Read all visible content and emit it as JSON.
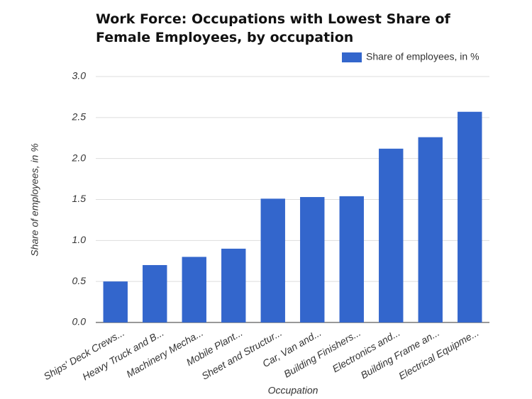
{
  "chart_data": {
    "type": "bar",
    "title": "Work Force: Occupations with Lowest Share of Female Employees, by occupation",
    "x_label": "Occupation",
    "y_label": "Share of employees, in %",
    "categories": [
      "Ships' Deck Crews...",
      "Heavy Truck and B...",
      "Machinery Mecha...",
      "Mobile Plant...",
      "Sheet and Structur...",
      "Car, Van and...",
      "Building Finishers...",
      "Electronics and...",
      "Building Frame an...",
      "Electrical Equipme..."
    ],
    "series": [
      {
        "name": "Share of employees, in %",
        "color": "#3366cc",
        "values": [
          0.5,
          0.7,
          0.8,
          0.9,
          1.51,
          1.53,
          1.54,
          2.12,
          2.26,
          2.57
        ]
      }
    ],
    "ylim": [
      0,
      3
    ],
    "yticks": [
      {
        "value": 0,
        "label": "0.0"
      },
      0.5,
      {
        "value": 1,
        "label": "1.0"
      },
      1.5,
      {
        "value": 2,
        "label": "2.0"
      },
      2.5,
      {
        "value": 3,
        "label": "3.0"
      }
    ],
    "grid": true,
    "legend": "top-right"
  }
}
